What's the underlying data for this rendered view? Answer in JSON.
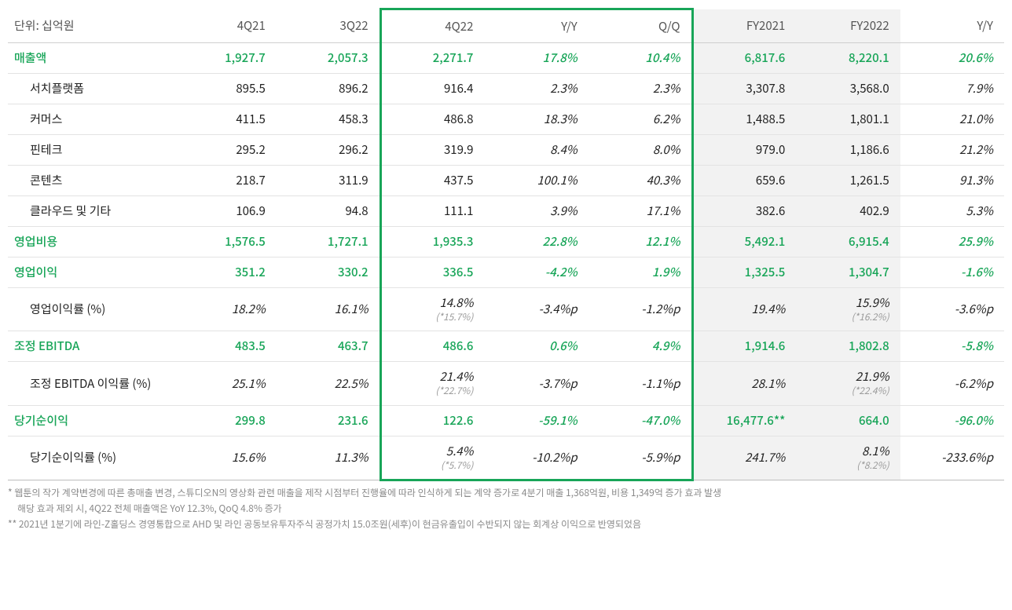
{
  "meta": {
    "unit_label": "단위: 십억원",
    "columns": [
      "4Q21",
      "3Q22",
      "4Q22",
      "Y/Y",
      "Q/Q",
      "FY2021",
      "FY2022",
      "Y/Y"
    ],
    "highlight_cols": [
      2,
      3,
      4
    ],
    "shaded_cols": [
      5,
      6
    ],
    "colors": {
      "accent": "#18a558",
      "text": "#333333",
      "muted": "#9a9a9a",
      "border": "#e3e3e3",
      "header_border": "#cfcfcf",
      "shade_bg": "#f2f2f2",
      "background": "#ffffff"
    },
    "font_size_body": 15,
    "font_size_note": 12
  },
  "rows": [
    {
      "type": "header",
      "label": "매출액",
      "cells": [
        "1,927.7",
        "2,057.3",
        "2,271.7",
        "17.8%",
        "10.4%",
        "6,817.6",
        "8,220.1",
        "20.6%"
      ]
    },
    {
      "type": "sub",
      "label": "서치플랫폼",
      "cells": [
        "895.5",
        "896.2",
        "916.4",
        "2.3%",
        "2.3%",
        "3,307.8",
        "3,568.0",
        "7.9%"
      ]
    },
    {
      "type": "sub",
      "label": "커머스",
      "cells": [
        "411.5",
        "458.3",
        "486.8",
        "18.3%",
        "6.2%",
        "1,488.5",
        "1,801.1",
        "21.0%"
      ]
    },
    {
      "type": "sub",
      "label": "핀테크",
      "cells": [
        "295.2",
        "296.2",
        "319.9",
        "8.4%",
        "8.0%",
        "979.0",
        "1,186.6",
        "21.2%"
      ]
    },
    {
      "type": "sub",
      "label": "콘텐츠",
      "cells": [
        "218.7",
        "311.9",
        "437.5",
        "100.1%",
        "40.3%",
        "659.6",
        "1,261.5",
        "91.3%"
      ]
    },
    {
      "type": "sub",
      "label": "클라우드 및 기타",
      "cells": [
        "106.9",
        "94.8",
        "111.1",
        "3.9%",
        "17.1%",
        "382.6",
        "402.9",
        "5.3%"
      ]
    },
    {
      "type": "header",
      "label": "영업비용",
      "cells": [
        "1,576.5",
        "1,727.1",
        "1,935.3",
        "22.8%",
        "12.1%",
        "5,492.1",
        "6,915.4",
        "25.9%"
      ]
    },
    {
      "type": "header",
      "label": "영업이익",
      "cells": [
        "351.2",
        "330.2",
        "336.5",
        "-4.2%",
        "1.9%",
        "1,325.5",
        "1,304.7",
        "-1.6%"
      ]
    },
    {
      "type": "sub",
      "label": "영업이익률 (%)",
      "italic_all": true,
      "cells": [
        "18.2%",
        "16.1%",
        "14.8%",
        "-3.4%p",
        "-1.2%p",
        "19.4%",
        "15.9%",
        "-3.6%p"
      ],
      "sub_notes": {
        "2": "(*15.7%)",
        "6": "(*16.2%)"
      }
    },
    {
      "type": "header",
      "label": "조정 EBITDA",
      "cells": [
        "483.5",
        "463.7",
        "486.6",
        "0.6%",
        "4.9%",
        "1,914.6",
        "1,802.8",
        "-5.8%"
      ]
    },
    {
      "type": "sub",
      "label": "조정 EBITDA 이익률 (%)",
      "italic_all": true,
      "cells": [
        "25.1%",
        "22.5%",
        "21.4%",
        "-3.7%p",
        "-1.1%p",
        "28.1%",
        "21.9%",
        "-6.2%p"
      ],
      "sub_notes": {
        "2": "(*22.7%)",
        "6": "(*22.4%)"
      }
    },
    {
      "type": "header",
      "label": "당기순이익",
      "cells": [
        "299.8",
        "231.6",
        "122.6",
        "-59.1%",
        "-47.0%",
        "16,477.6**",
        "664.0",
        "-96.0%"
      ]
    },
    {
      "type": "sub",
      "label": "당기순이익률 (%)",
      "italic_all": true,
      "last": true,
      "cells": [
        "15.6%",
        "11.3%",
        "5.4%",
        "-10.2%p",
        "-5.9%p",
        "241.7%",
        "8.1%",
        "-233.6%p"
      ],
      "sub_notes": {
        "2": "(*5.7%)",
        "6": "(*8.2%)"
      }
    }
  ],
  "footnotes": [
    "* 웹툰의 작가 계약변경에 따른 총매출 변경, 스튜디오N의 영상화 관련 매출을 제작 시점부터 진행율에 따라 인식하게 되는 계약 증가로 4분기 매출 1,368억원, 비용 1,349억 증가 효과 발생",
    "  해당 효과 제외 시, 4Q22 전체 매출액은 YoY 12.3%, QoQ 4.8% 증가",
    "** 2021년 1분기에 라인-Z홀딩스 경영통합으로 AHD 및 라인 공동보유투자주식 공정가치 15.0조원(세후)이 현금유출입이 수반되지 않는 회계상 이익으로 반영되었음"
  ]
}
